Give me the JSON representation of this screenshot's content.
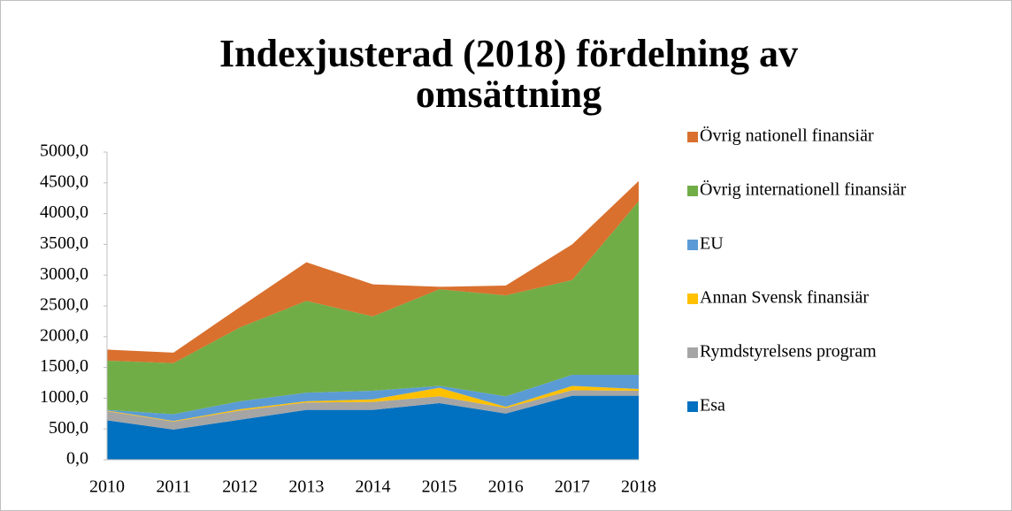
{
  "chart_data": {
    "type": "stacked_area",
    "title": "Indexjusterad (2018) fördelning av omsättning",
    "categories": [
      "2010",
      "2011",
      "2012",
      "2013",
      "2014",
      "2015",
      "2016",
      "2017",
      "2018"
    ],
    "series": [
      {
        "name": "Esa",
        "color": "#0070c0",
        "values": [
          640,
          490,
          650,
          810,
          810,
          920,
          750,
          1040,
          1040
        ]
      },
      {
        "name": "Rymdstyrelsens program",
        "color": "#a5a5a5",
        "values": [
          150,
          130,
          150,
          120,
          130,
          110,
          90,
          90,
          80
        ]
      },
      {
        "name": "Annan Svensk finansiär",
        "color": "#ffc000",
        "values": [
          10,
          10,
          20,
          20,
          40,
          140,
          20,
          70,
          30
        ]
      },
      {
        "name": "EU",
        "color": "#5b9bd5",
        "values": [
          10,
          110,
          130,
          140,
          140,
          30,
          170,
          180,
          230
        ]
      },
      {
        "name": "Övrig internationell finansiär",
        "color": "#70ad47",
        "values": [
          800,
          830,
          1200,
          1490,
          1210,
          1570,
          1640,
          1540,
          2820
        ]
      },
      {
        "name": "Övrig nationell finansiär",
        "color": "#d9702e",
        "values": [
          180,
          170,
          330,
          630,
          520,
          40,
          160,
          580,
          330
        ]
      }
    ],
    "ylim": [
      0,
      5000
    ],
    "yticks": [
      {
        "value": 0,
        "label": "0,0"
      },
      {
        "value": 500,
        "label": "500,0"
      },
      {
        "value": 1000,
        "label": "1000,0"
      },
      {
        "value": 1500,
        "label": "1500,0"
      },
      {
        "value": 2000,
        "label": "2000,0"
      },
      {
        "value": 2500,
        "label": "2500,0"
      },
      {
        "value": 3000,
        "label": "3000,0"
      },
      {
        "value": 3500,
        "label": "3500,0"
      },
      {
        "value": 4000,
        "label": "4000,0"
      },
      {
        "value": 4500,
        "label": "4500,0"
      },
      {
        "value": 5000,
        "label": "5000,0"
      }
    ],
    "legend": "right"
  }
}
